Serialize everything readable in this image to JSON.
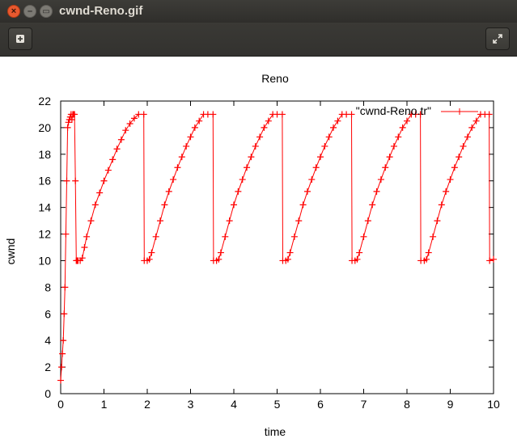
{
  "window": {
    "title": "cwnd-Reno.gif",
    "close_glyph": "×",
    "min_glyph": "–",
    "max_glyph": "▭"
  },
  "toolbar": {
    "add_icon": "plus-square-icon",
    "fullscreen_icon": "fullscreen-icon"
  },
  "chart_data": {
    "type": "line",
    "title": "Reno",
    "xlabel": "time",
    "ylabel": "cwnd",
    "xlim": [
      0,
      10
    ],
    "ylim": [
      0,
      22
    ],
    "xticks": [
      0,
      1,
      2,
      3,
      4,
      5,
      6,
      7,
      8,
      9,
      10
    ],
    "yticks": [
      0,
      2,
      4,
      6,
      8,
      10,
      12,
      14,
      16,
      18,
      20,
      22
    ],
    "grid": false,
    "legend_position": "top-right",
    "series": [
      {
        "name": "\"cwnd-Reno.tr\"",
        "color": "#ff0000",
        "marker": "plus",
        "x": [
          0.0,
          0.02,
          0.04,
          0.06,
          0.08,
          0.1,
          0.12,
          0.14,
          0.16,
          0.18,
          0.2,
          0.22,
          0.24,
          0.26,
          0.28,
          0.3,
          0.32,
          0.34,
          0.36,
          0.37,
          0.38,
          0.39,
          0.4,
          0.45,
          0.5,
          0.55,
          0.6,
          0.7,
          0.8,
          0.9,
          1.0,
          1.1,
          1.2,
          1.3,
          1.4,
          1.5,
          1.6,
          1.7,
          1.8,
          1.92,
          1.93,
          2.0,
          2.05,
          2.1,
          2.2,
          2.3,
          2.4,
          2.5,
          2.6,
          2.7,
          2.8,
          2.9,
          3.0,
          3.1,
          3.2,
          3.3,
          3.4,
          3.52,
          3.53,
          3.6,
          3.65,
          3.7,
          3.8,
          3.9,
          4.0,
          4.1,
          4.2,
          4.3,
          4.4,
          4.5,
          4.6,
          4.7,
          4.8,
          4.9,
          5.0,
          5.12,
          5.13,
          5.2,
          5.25,
          5.3,
          5.4,
          5.5,
          5.6,
          5.7,
          5.8,
          5.9,
          6.0,
          6.1,
          6.2,
          6.3,
          6.4,
          6.5,
          6.6,
          6.72,
          6.73,
          6.8,
          6.85,
          6.9,
          7.0,
          7.1,
          7.2,
          7.3,
          7.4,
          7.5,
          7.6,
          7.7,
          7.8,
          7.9,
          8.0,
          8.1,
          8.2,
          8.31,
          8.32,
          8.4,
          8.45,
          8.5,
          8.6,
          8.7,
          8.8,
          8.9,
          9.0,
          9.1,
          9.2,
          9.3,
          9.4,
          9.5,
          9.6,
          9.7,
          9.8,
          9.9,
          9.91,
          10.0
        ],
        "y": [
          1,
          2,
          3,
          4,
          6,
          8,
          12,
          16,
          20,
          20.4,
          20.6,
          20.8,
          21,
          20.6,
          21,
          21,
          21,
          16,
          10,
          10,
          10,
          10,
          10,
          10,
          10.2,
          11,
          11.8,
          13,
          14.2,
          15.1,
          16,
          16.8,
          17.6,
          18.4,
          19.1,
          19.8,
          20.3,
          20.7,
          21,
          21,
          10,
          10,
          10.1,
          10.6,
          11.8,
          13,
          14.2,
          15.2,
          16.1,
          17,
          17.8,
          18.6,
          19.3,
          20,
          20.5,
          21,
          21,
          21,
          10,
          10,
          10.1,
          10.6,
          11.8,
          13,
          14.2,
          15.2,
          16.1,
          17,
          17.8,
          18.6,
          19.3,
          20,
          20.5,
          21,
          21,
          21,
          10,
          10,
          10.1,
          10.6,
          11.8,
          13,
          14.2,
          15.2,
          16.1,
          17,
          17.8,
          18.6,
          19.3,
          20,
          20.5,
          21,
          21,
          21,
          10,
          10,
          10.1,
          10.6,
          11.8,
          13,
          14.2,
          15.2,
          16.1,
          17,
          17.8,
          18.6,
          19.3,
          20,
          20.5,
          21,
          21,
          21,
          10,
          10,
          10.1,
          10.6,
          11.8,
          13,
          14.2,
          15.2,
          16.1,
          17,
          17.8,
          18.6,
          19.3,
          20,
          20.5,
          21,
          21,
          21,
          10,
          10.1
        ]
      }
    ]
  }
}
